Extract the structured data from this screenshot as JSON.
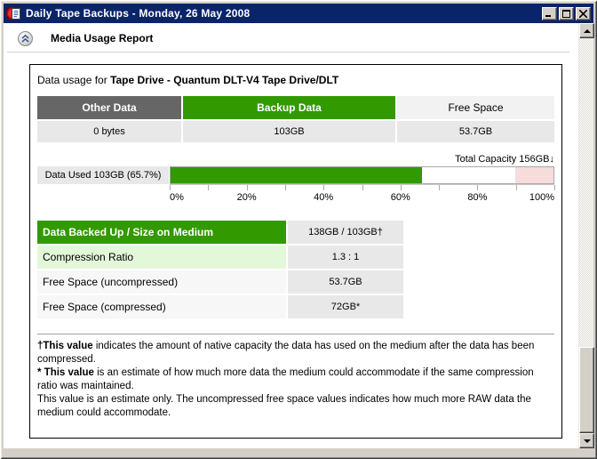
{
  "window": {
    "title": "Daily Tape Backups - Monday, 26 May 2008"
  },
  "header": {
    "title": "Media Usage Report"
  },
  "report": {
    "intro_prefix": "Data usage for ",
    "intro_subject": "Tape Drive - Quantum DLT-V4 Tape Drive/DLT",
    "usage_table": {
      "columns": [
        {
          "label": "Other Data",
          "value": "0 bytes",
          "header_bg": "#666666",
          "header_fg": "#ffffff",
          "header_bold": true
        },
        {
          "label": "Backup Data",
          "value": "103GB",
          "header_bg": "#339900",
          "header_fg": "#ffffff",
          "header_bold": true
        },
        {
          "label": "Free Space",
          "value": "53.7GB",
          "header_bg": "#F2F2F2",
          "header_fg": "#000000",
          "header_bold": false
        }
      ]
    },
    "total_capacity_label": "Total Capacity 156GB↓",
    "details_table": {
      "rows": [
        {
          "label": "Data Backed Up / Size on Medium",
          "value": "138GB / 103GB†"
        },
        {
          "label": "Compression Ratio",
          "value": "1.3 : 1"
        },
        {
          "label": "Free Space (uncompressed)",
          "value": "53.7GB"
        },
        {
          "label": "Free Space (compressed)",
          "value": "72GB*"
        }
      ]
    },
    "footnotes": [
      {
        "bold": "†This value",
        "text": " indicates the amount of native capacity the data has used on the medium after the data has been compressed."
      },
      {
        "bold": "* This value",
        "text": " is an estimate of how much more data the medium could accommodate if the same compression ratio was maintained."
      },
      {
        "bold": "",
        "text": "This value is an estimate only. The uncompressed free space values indicates how much more RAW data the medium could accommodate."
      }
    ]
  },
  "chart_data": {
    "type": "bar",
    "title": "Media usage gauge",
    "bar_label": "Data Used 103GB (65.7%)",
    "data_used_percent": 65.7,
    "warning_zone_start_percent": 90,
    "x_tick_labels": [
      "0%",
      "20%",
      "40%",
      "60%",
      "80%",
      "100%"
    ],
    "minor_tick_step_percent": 10,
    "xlim": [
      0,
      100
    ],
    "total_capacity_gb": 156,
    "data_used_gb": 103,
    "other_data_bytes": 0,
    "backup_data_gb": 103,
    "free_space_gb": 53.7,
    "colors": {
      "used": "#339900",
      "free": "#ffffff",
      "warning": "#F7DCDC"
    }
  }
}
